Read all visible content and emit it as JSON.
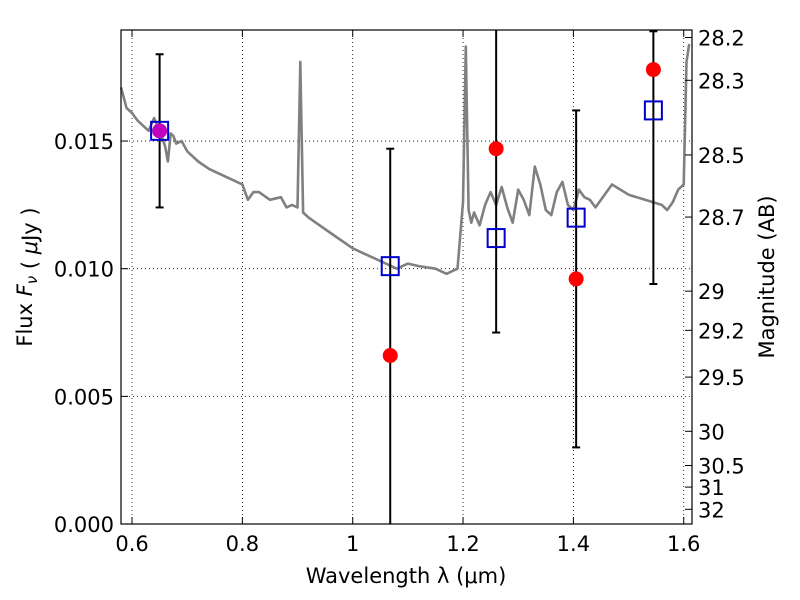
{
  "chart_data": {
    "type": "scatter",
    "xlabel": "Wavelength  λ (μm)",
    "ylabel": "Flux  F_ν  ( μJy )",
    "ylabel_right": "Magnitude (AB)",
    "xlim": [
      0.58,
      1.615
    ],
    "ylim": [
      0.0,
      0.01935
    ],
    "grid": true,
    "x_ticks": [
      0.6,
      0.8,
      1.0,
      1.2,
      1.4,
      1.6
    ],
    "x_tick_labels": [
      "0.6",
      "0.8",
      "1",
      "1.2",
      "1.4",
      "1.6"
    ],
    "y_ticks": [
      0.0,
      0.005,
      0.01,
      0.015
    ],
    "y_tick_labels": [
      "0.000",
      "0.005",
      "0.010",
      "0.015"
    ],
    "right_ticks": [
      28.2,
      28.3,
      28.5,
      28.7,
      29,
      29.2,
      29.5,
      30,
      30.5,
      31,
      32
    ],
    "right_tick_labels": [
      "28.2",
      "28.3",
      "28.5",
      "28.7",
      "29",
      "29.2",
      "29.5",
      "30",
      "30.5",
      "31",
      "32"
    ],
    "observed_points": {
      "color": "#ff0000",
      "x": [
        1.068,
        1.26,
        1.405,
        1.545
      ],
      "y": [
        0.0066,
        0.0147,
        0.0096,
        0.0178
      ],
      "err_low": [
        0.0066,
        0.0072,
        0.0066,
        0.0084
      ],
      "err_high": [
        0.0081,
        0.0053,
        0.0066,
        0.0015
      ]
    },
    "blended_point": {
      "x": 0.65,
      "y": 0.0154,
      "color": "#bf00bf",
      "err": 0.003
    },
    "model_points": {
      "color": "#0000cc",
      "x": [
        0.65,
        1.068,
        1.26,
        1.405,
        1.545
      ],
      "y": [
        0.0154,
        0.0101,
        0.0112,
        0.012,
        0.0162
      ]
    },
    "model_spectrum": {
      "color": "#808080",
      "x": [
        0.58,
        0.585,
        0.59,
        0.6,
        0.61,
        0.62,
        0.63,
        0.64,
        0.65,
        0.66,
        0.665,
        0.67,
        0.675,
        0.68,
        0.69,
        0.7,
        0.72,
        0.74,
        0.76,
        0.78,
        0.8,
        0.81,
        0.82,
        0.83,
        0.85,
        0.87,
        0.88,
        0.89,
        0.9,
        0.905,
        0.91,
        0.92,
        0.94,
        0.96,
        1.0,
        1.02,
        1.05,
        1.08,
        1.1,
        1.12,
        1.15,
        1.17,
        1.19,
        1.2,
        1.205,
        1.21,
        1.215,
        1.22,
        1.23,
        1.24,
        1.25,
        1.26,
        1.27,
        1.28,
        1.29,
        1.3,
        1.31,
        1.32,
        1.33,
        1.34,
        1.35,
        1.36,
        1.37,
        1.38,
        1.39,
        1.4,
        1.41,
        1.42,
        1.43,
        1.44,
        1.45,
        1.47,
        1.5,
        1.53,
        1.56,
        1.57,
        1.58,
        1.59,
        1.6,
        1.605,
        1.61
      ],
      "y": [
        0.0171,
        0.0167,
        0.0163,
        0.0161,
        0.0158,
        0.0156,
        0.0154,
        0.0159,
        0.0154,
        0.0148,
        0.0142,
        0.0153,
        0.0152,
        0.0149,
        0.015,
        0.0146,
        0.0142,
        0.0139,
        0.0137,
        0.0135,
        0.0133,
        0.0127,
        0.013,
        0.013,
        0.0127,
        0.0128,
        0.0124,
        0.0125,
        0.0124,
        0.0181,
        0.0122,
        0.012,
        0.0117,
        0.0114,
        0.0108,
        0.0106,
        0.0103,
        0.01,
        0.0102,
        0.0101,
        0.01,
        0.0098,
        0.01,
        0.0126,
        0.0187,
        0.0123,
        0.0118,
        0.0122,
        0.0117,
        0.0125,
        0.013,
        0.0125,
        0.0132,
        0.0124,
        0.0118,
        0.0131,
        0.0127,
        0.0121,
        0.014,
        0.0133,
        0.0123,
        0.0121,
        0.013,
        0.0134,
        0.0125,
        0.0123,
        0.0131,
        0.0128,
        0.0127,
        0.0124,
        0.0127,
        0.0133,
        0.0129,
        0.0127,
        0.0125,
        0.0123,
        0.0126,
        0.0131,
        0.0133,
        0.0181,
        0.0188
      ]
    }
  }
}
